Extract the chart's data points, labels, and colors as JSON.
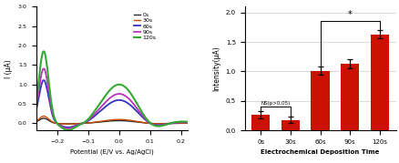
{
  "left_chart": {
    "xlabel": "Potential (E/V vs. Ag/AgCl)",
    "ylabel": "I (μA)",
    "xlim": [
      -0.27,
      0.22
    ],
    "ylim": [
      -0.18,
      3.0
    ],
    "yticks": [
      0.0,
      0.5,
      1.0,
      1.5,
      2.0,
      2.5,
      3.0
    ],
    "xticks": [
      -0.2,
      -0.1,
      0.0,
      0.1,
      0.2
    ],
    "legend_labels": [
      "0s",
      "30s",
      "60s",
      "90s",
      "120s"
    ],
    "line_colors": [
      "#2a2a2a",
      "#c84b00",
      "#3333bb",
      "#bb33bb",
      "#33aa33"
    ],
    "line_widths": [
      1.0,
      1.0,
      1.3,
      1.3,
      1.5
    ],
    "scales": [
      0.07,
      0.1,
      0.6,
      0.76,
      1.0
    ]
  },
  "right_chart": {
    "categories": [
      "0s",
      "30s",
      "60s",
      "90s",
      "120s"
    ],
    "values": [
      0.26,
      0.18,
      1.01,
      1.13,
      1.63
    ],
    "errors": [
      0.06,
      0.05,
      0.07,
      0.07,
      0.07
    ],
    "bar_color": "#cc1100",
    "xlabel": "Electrochemical Deposition Time",
    "ylabel": "Intensity(μA)",
    "ylim": [
      0,
      2.1
    ],
    "yticks": [
      0,
      0.5,
      1.0,
      1.5,
      2.0
    ],
    "ns_label": "NS(p>0.05)",
    "sig_label": "*"
  },
  "background_color": "#ffffff"
}
